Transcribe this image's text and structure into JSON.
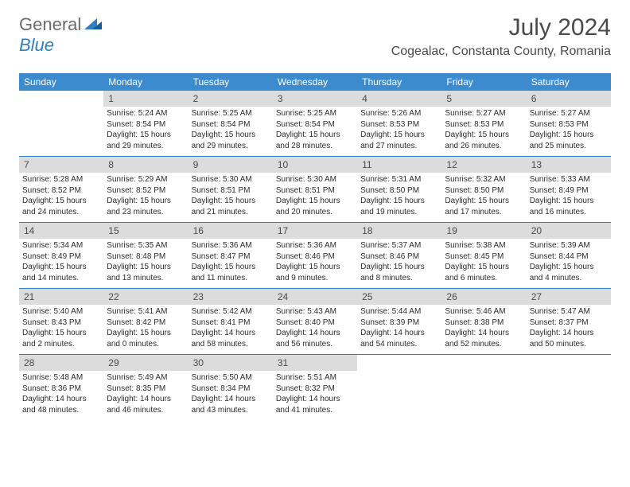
{
  "brand": {
    "part1": "General",
    "part2": "Blue"
  },
  "title": "July 2024",
  "location": "Cogealac, Constanta County, Romania",
  "colors": {
    "header_bg": "#3b8bce",
    "daynum_bg": "#dcdcdc",
    "rule": "#2f7fc2",
    "text": "#2b2b2b",
    "title_text": "#4a4a4a"
  },
  "weekdays": [
    "Sunday",
    "Monday",
    "Tuesday",
    "Wednesday",
    "Thursday",
    "Friday",
    "Saturday"
  ],
  "weeks": [
    [
      {
        "n": "",
        "sr": "",
        "ss": "",
        "dl": ""
      },
      {
        "n": "1",
        "sr": "Sunrise: 5:24 AM",
        "ss": "Sunset: 8:54 PM",
        "dl": "Daylight: 15 hours and 29 minutes."
      },
      {
        "n": "2",
        "sr": "Sunrise: 5:25 AM",
        "ss": "Sunset: 8:54 PM",
        "dl": "Daylight: 15 hours and 29 minutes."
      },
      {
        "n": "3",
        "sr": "Sunrise: 5:25 AM",
        "ss": "Sunset: 8:54 PM",
        "dl": "Daylight: 15 hours and 28 minutes."
      },
      {
        "n": "4",
        "sr": "Sunrise: 5:26 AM",
        "ss": "Sunset: 8:53 PM",
        "dl": "Daylight: 15 hours and 27 minutes."
      },
      {
        "n": "5",
        "sr": "Sunrise: 5:27 AM",
        "ss": "Sunset: 8:53 PM",
        "dl": "Daylight: 15 hours and 26 minutes."
      },
      {
        "n": "6",
        "sr": "Sunrise: 5:27 AM",
        "ss": "Sunset: 8:53 PM",
        "dl": "Daylight: 15 hours and 25 minutes."
      }
    ],
    [
      {
        "n": "7",
        "sr": "Sunrise: 5:28 AM",
        "ss": "Sunset: 8:52 PM",
        "dl": "Daylight: 15 hours and 24 minutes."
      },
      {
        "n": "8",
        "sr": "Sunrise: 5:29 AM",
        "ss": "Sunset: 8:52 PM",
        "dl": "Daylight: 15 hours and 23 minutes."
      },
      {
        "n": "9",
        "sr": "Sunrise: 5:30 AM",
        "ss": "Sunset: 8:51 PM",
        "dl": "Daylight: 15 hours and 21 minutes."
      },
      {
        "n": "10",
        "sr": "Sunrise: 5:30 AM",
        "ss": "Sunset: 8:51 PM",
        "dl": "Daylight: 15 hours and 20 minutes."
      },
      {
        "n": "11",
        "sr": "Sunrise: 5:31 AM",
        "ss": "Sunset: 8:50 PM",
        "dl": "Daylight: 15 hours and 19 minutes."
      },
      {
        "n": "12",
        "sr": "Sunrise: 5:32 AM",
        "ss": "Sunset: 8:50 PM",
        "dl": "Daylight: 15 hours and 17 minutes."
      },
      {
        "n": "13",
        "sr": "Sunrise: 5:33 AM",
        "ss": "Sunset: 8:49 PM",
        "dl": "Daylight: 15 hours and 16 minutes."
      }
    ],
    [
      {
        "n": "14",
        "sr": "Sunrise: 5:34 AM",
        "ss": "Sunset: 8:49 PM",
        "dl": "Daylight: 15 hours and 14 minutes."
      },
      {
        "n": "15",
        "sr": "Sunrise: 5:35 AM",
        "ss": "Sunset: 8:48 PM",
        "dl": "Daylight: 15 hours and 13 minutes."
      },
      {
        "n": "16",
        "sr": "Sunrise: 5:36 AM",
        "ss": "Sunset: 8:47 PM",
        "dl": "Daylight: 15 hours and 11 minutes."
      },
      {
        "n": "17",
        "sr": "Sunrise: 5:36 AM",
        "ss": "Sunset: 8:46 PM",
        "dl": "Daylight: 15 hours and 9 minutes."
      },
      {
        "n": "18",
        "sr": "Sunrise: 5:37 AM",
        "ss": "Sunset: 8:46 PM",
        "dl": "Daylight: 15 hours and 8 minutes."
      },
      {
        "n": "19",
        "sr": "Sunrise: 5:38 AM",
        "ss": "Sunset: 8:45 PM",
        "dl": "Daylight: 15 hours and 6 minutes."
      },
      {
        "n": "20",
        "sr": "Sunrise: 5:39 AM",
        "ss": "Sunset: 8:44 PM",
        "dl": "Daylight: 15 hours and 4 minutes."
      }
    ],
    [
      {
        "n": "21",
        "sr": "Sunrise: 5:40 AM",
        "ss": "Sunset: 8:43 PM",
        "dl": "Daylight: 15 hours and 2 minutes."
      },
      {
        "n": "22",
        "sr": "Sunrise: 5:41 AM",
        "ss": "Sunset: 8:42 PM",
        "dl": "Daylight: 15 hours and 0 minutes."
      },
      {
        "n": "23",
        "sr": "Sunrise: 5:42 AM",
        "ss": "Sunset: 8:41 PM",
        "dl": "Daylight: 14 hours and 58 minutes."
      },
      {
        "n": "24",
        "sr": "Sunrise: 5:43 AM",
        "ss": "Sunset: 8:40 PM",
        "dl": "Daylight: 14 hours and 56 minutes."
      },
      {
        "n": "25",
        "sr": "Sunrise: 5:44 AM",
        "ss": "Sunset: 8:39 PM",
        "dl": "Daylight: 14 hours and 54 minutes."
      },
      {
        "n": "26",
        "sr": "Sunrise: 5:46 AM",
        "ss": "Sunset: 8:38 PM",
        "dl": "Daylight: 14 hours and 52 minutes."
      },
      {
        "n": "27",
        "sr": "Sunrise: 5:47 AM",
        "ss": "Sunset: 8:37 PM",
        "dl": "Daylight: 14 hours and 50 minutes."
      }
    ],
    [
      {
        "n": "28",
        "sr": "Sunrise: 5:48 AM",
        "ss": "Sunset: 8:36 PM",
        "dl": "Daylight: 14 hours and 48 minutes."
      },
      {
        "n": "29",
        "sr": "Sunrise: 5:49 AM",
        "ss": "Sunset: 8:35 PM",
        "dl": "Daylight: 14 hours and 46 minutes."
      },
      {
        "n": "30",
        "sr": "Sunrise: 5:50 AM",
        "ss": "Sunset: 8:34 PM",
        "dl": "Daylight: 14 hours and 43 minutes."
      },
      {
        "n": "31",
        "sr": "Sunrise: 5:51 AM",
        "ss": "Sunset: 8:32 PM",
        "dl": "Daylight: 14 hours and 41 minutes."
      },
      {
        "n": "",
        "sr": "",
        "ss": "",
        "dl": ""
      },
      {
        "n": "",
        "sr": "",
        "ss": "",
        "dl": ""
      },
      {
        "n": "",
        "sr": "",
        "ss": "",
        "dl": ""
      }
    ]
  ]
}
